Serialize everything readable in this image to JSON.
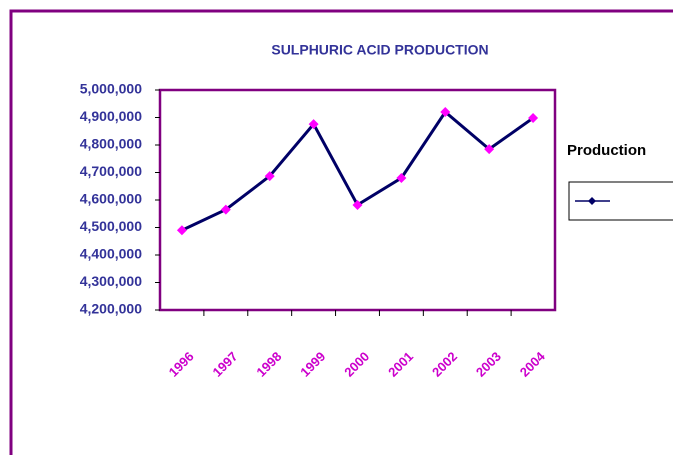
{
  "chart_data": {
    "type": "line",
    "title": "SULPHURIC ACID PRODUCTION",
    "categories": [
      "1996",
      "1997",
      "1998",
      "1999",
      "2000",
      "2001",
      "2002",
      "2003",
      "2004"
    ],
    "series": [
      {
        "name": "Production",
        "color": "#000066",
        "marker_color": "#ff00ff",
        "values": [
          4490000,
          4565000,
          4687000,
          4876000,
          4582000,
          4680000,
          4920000,
          4785000,
          4898000
        ]
      }
    ],
    "ylim": [
      4200000,
      5000000
    ],
    "yticks": [
      {
        "value": 4200000,
        "label": "4,200,000"
      },
      {
        "value": 4300000,
        "label": "4,300,000"
      },
      {
        "value": 4400000,
        "label": "4,400,000"
      },
      {
        "value": 4500000,
        "label": "4,500,000"
      },
      {
        "value": 4600000,
        "label": "4,600,000"
      },
      {
        "value": 4700000,
        "label": "4,700,000"
      },
      {
        "value": 4800000,
        "label": "4,800,000"
      },
      {
        "value": 4900000,
        "label": "4,900,000"
      },
      {
        "value": 5000000,
        "label": "5,000,000"
      }
    ],
    "grid": false,
    "legend": "right"
  }
}
